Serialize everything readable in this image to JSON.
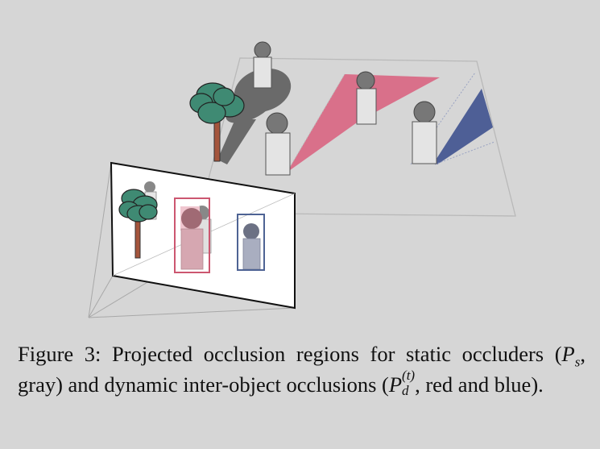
{
  "caption": {
    "label": "Figure 3:",
    "text_1": " Projected occlusion regions for static occluders (",
    "math_static": "P",
    "sub_s": "s",
    "text_2": ", gray) and dynamic inter-object occlusions (",
    "math_dynamic": "P",
    "sup_t": "(t)",
    "sub_d": "d",
    "text_3": ", red and blue)."
  },
  "colors": {
    "background": "#d6d6d6",
    "static_occlusion": "#6a6a6a",
    "dynamic_occlusion_red": "#d9708a",
    "dynamic_occlusion_blue": "#4e5f96",
    "tree_canopy": "#3f8a73",
    "tree_trunk": "#a4553c",
    "person_body": "#e4e4e4",
    "person_head": "#777777",
    "bbox_red": "#cc5670",
    "bbox_blue": "#4e6394"
  },
  "icons": [
    "tree-icon",
    "person-icon"
  ]
}
